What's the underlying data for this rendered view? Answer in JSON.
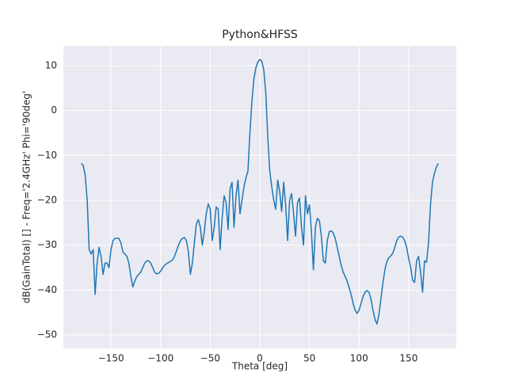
{
  "chart_data": {
    "type": "line",
    "title": "Python&HFSS",
    "x_label": "Theta [deg]",
    "y_label": "dB(GainTotal) [] - Freq='2.4GHz' Phi='90deg'",
    "color": "#1f77b4",
    "grid": true,
    "xlim": [
      -198,
      198
    ],
    "ylim": [
      -53,
      14.4
    ],
    "xticks": [
      {
        "value": -150,
        "label": "−150"
      },
      {
        "value": -100,
        "label": "−100"
      },
      {
        "value": -50,
        "label": "−50"
      },
      0,
      50,
      100,
      150
    ],
    "yticks": [
      {
        "value": -50,
        "label": "−50"
      },
      {
        "value": -40,
        "label": "−40"
      },
      {
        "value": -30,
        "label": "−30"
      },
      {
        "value": -20,
        "label": "−20"
      },
      {
        "value": -10,
        "label": "−10"
      },
      0,
      10
    ],
    "x": [
      -180,
      -178,
      -176,
      -174,
      -172,
      -170,
      -168,
      -166,
      -164,
      -162,
      -160,
      -158,
      -156,
      -154,
      -152,
      -150,
      -148,
      -146,
      -144,
      -142,
      -140,
      -138,
      -136,
      -134,
      -132,
      -130,
      -128,
      -126,
      -124,
      -122,
      -120,
      -118,
      -116,
      -114,
      -112,
      -110,
      -108,
      -106,
      -104,
      -102,
      -100,
      -98,
      -96,
      -94,
      -92,
      -90,
      -88,
      -86,
      -84,
      -82,
      -80,
      -78,
      -76,
      -74,
      -72,
      -70,
      -68,
      -66,
      -64,
      -62,
      -60,
      -58,
      -56,
      -54,
      -52,
      -50,
      -48,
      -46,
      -44,
      -42,
      -40,
      -38,
      -36,
      -34,
      -32,
      -30,
      -28,
      -26,
      -24,
      -22,
      -20,
      -18,
      -16,
      -14,
      -12,
      -10,
      -8,
      -6,
      -4,
      -2,
      0,
      2,
      4,
      6,
      8,
      10,
      12,
      14,
      16,
      18,
      20,
      22,
      24,
      26,
      28,
      30,
      32,
      34,
      36,
      38,
      40,
      42,
      44,
      46,
      48,
      50,
      52,
      54,
      56,
      58,
      60,
      62,
      64,
      66,
      68,
      70,
      72,
      74,
      76,
      78,
      80,
      82,
      84,
      86,
      88,
      90,
      92,
      94,
      96,
      98,
      100,
      102,
      104,
      106,
      108,
      110,
      112,
      114,
      116,
      118,
      120,
      122,
      124,
      126,
      128,
      130,
      132,
      134,
      136,
      138,
      140,
      142,
      144,
      146,
      148,
      150,
      152,
      154,
      156,
      158,
      160,
      162,
      164,
      166,
      168,
      170,
      172,
      174,
      176,
      178,
      180
    ],
    "values": [
      -11.8,
      -12.2,
      -14.5,
      -20,
      -31,
      -32,
      -31,
      -41,
      -34,
      -30.5,
      -32.5,
      -36.5,
      -34,
      -34,
      -35,
      -31,
      -29,
      -28.5,
      -28.5,
      -28.5,
      -29.5,
      -31.5,
      -32,
      -32.5,
      -34,
      -37,
      -39.3,
      -38,
      -37,
      -36.5,
      -36,
      -35,
      -34,
      -33.5,
      -33.5,
      -34,
      -35,
      -36,
      -36.4,
      -36.3,
      -35.8,
      -35.1,
      -34.5,
      -34.1,
      -33.9,
      -33.6,
      -33.3,
      -32.5,
      -31.3,
      -30,
      -29,
      -28.5,
      -28.3,
      -29,
      -31.5,
      -36.5,
      -34,
      -29.5,
      -25.3,
      -24.3,
      -26,
      -30,
      -27,
      -23,
      -20.8,
      -22,
      -29,
      -26,
      -21.5,
      -22,
      -31,
      -24,
      -19,
      -20.5,
      -26.5,
      -17.5,
      -16,
      -26,
      -19,
      -15.5,
      -23,
      -20,
      -17,
      -15,
      -13.5,
      -5,
      2,
      7,
      9.5,
      10.8,
      11.4,
      11,
      9,
      4,
      -6,
      -13.5,
      -17,
      -20,
      -22,
      -15.5,
      -18,
      -22.5,
      -16,
      -21,
      -29,
      -20,
      -18.5,
      -23,
      -28,
      -20.5,
      -19.5,
      -26,
      -30,
      -19,
      -23,
      -21,
      -27,
      -35.5,
      -26,
      -24,
      -24.5,
      -28,
      -33.5,
      -34,
      -29,
      -27,
      -26.8,
      -27.3,
      -28.5,
      -30.5,
      -32.5,
      -34.5,
      -36,
      -37,
      -38,
      -39.5,
      -41,
      -43,
      -44.5,
      -45.2,
      -44.5,
      -43,
      -41.5,
      -40.5,
      -40.1,
      -40.5,
      -42,
      -44.5,
      -46.5,
      -47.6,
      -45.5,
      -42,
      -38.5,
      -35.5,
      -33.7,
      -32.8,
      -32.4,
      -31.8,
      -30.5,
      -29,
      -28.2,
      -28,
      -28.2,
      -29,
      -30.5,
      -33,
      -35,
      -37.8,
      -38.3,
      -33.5,
      -32.5,
      -36,
      -40.5,
      -33.5,
      -33.8,
      -29.5,
      -21,
      -16,
      -14,
      -12.5,
      -11.8
    ]
  }
}
